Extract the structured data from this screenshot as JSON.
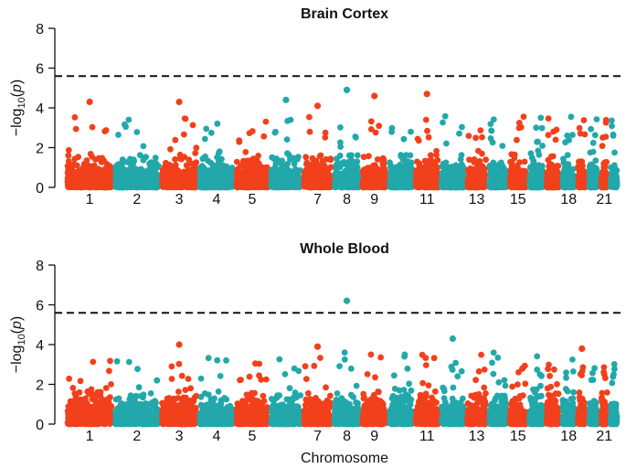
{
  "colors": {
    "odd": "#f2401c",
    "even": "#22a8ab",
    "axis": "#111111",
    "threshold": "#111111"
  },
  "chart_data": [
    {
      "type": "scatter",
      "title": "Brain Cortex",
      "ylabel": "−log10(p)",
      "ylabel_main": "−log",
      "ylabel_sub": "10",
      "ylabel_open": "(",
      "ylabel_var": "p",
      "ylabel_close": ")",
      "ylim": [
        0,
        8
      ],
      "yticks": [
        "0",
        "2",
        "4",
        "6",
        "8"
      ],
      "threshold": 5.6,
      "xlabel": "",
      "peaks": [
        {
          "chromosome": 1,
          "value": 4.3
        },
        {
          "chromosome": 3,
          "value": 4.3
        },
        {
          "chromosome": 6,
          "value": 4.4
        },
        {
          "chromosome": 7,
          "value": 4.1
        },
        {
          "chromosome": 8,
          "value": 4.9
        },
        {
          "chromosome": 9,
          "value": 4.6
        },
        {
          "chromosome": 11,
          "value": 4.7
        }
      ]
    },
    {
      "type": "scatter",
      "title": "Whole Blood",
      "ylabel": "−log10(p)",
      "ylabel_main": "−log",
      "ylabel_sub": "10",
      "ylabel_open": "(",
      "ylabel_var": "p",
      "ylabel_close": ")",
      "ylim": [
        0,
        8
      ],
      "yticks": [
        "0",
        "2",
        "4",
        "6",
        "8"
      ],
      "threshold": 5.6,
      "xlabel": "Chromosome",
      "peaks": [
        {
          "chromosome": 3,
          "value": 4.0
        },
        {
          "chromosome": 7,
          "value": 3.9
        },
        {
          "chromosome": 8,
          "value": 6.2
        },
        {
          "chromosome": 12,
          "value": 4.3
        },
        {
          "chromosome": 19,
          "value": 3.8
        }
      ]
    }
  ],
  "chromosomes": [
    "1",
    "2",
    "3",
    "4",
    "5",
    "6",
    "7",
    "8",
    "9",
    "10",
    "11",
    "12",
    "13",
    "14",
    "15",
    "16",
    "17",
    "18",
    "19",
    "20",
    "21",
    "22"
  ],
  "chrom_labels": [
    "1",
    "2",
    "3",
    "4",
    "5",
    "7",
    "8",
    "9",
    "11",
    "13",
    "15",
    "18",
    "21"
  ]
}
